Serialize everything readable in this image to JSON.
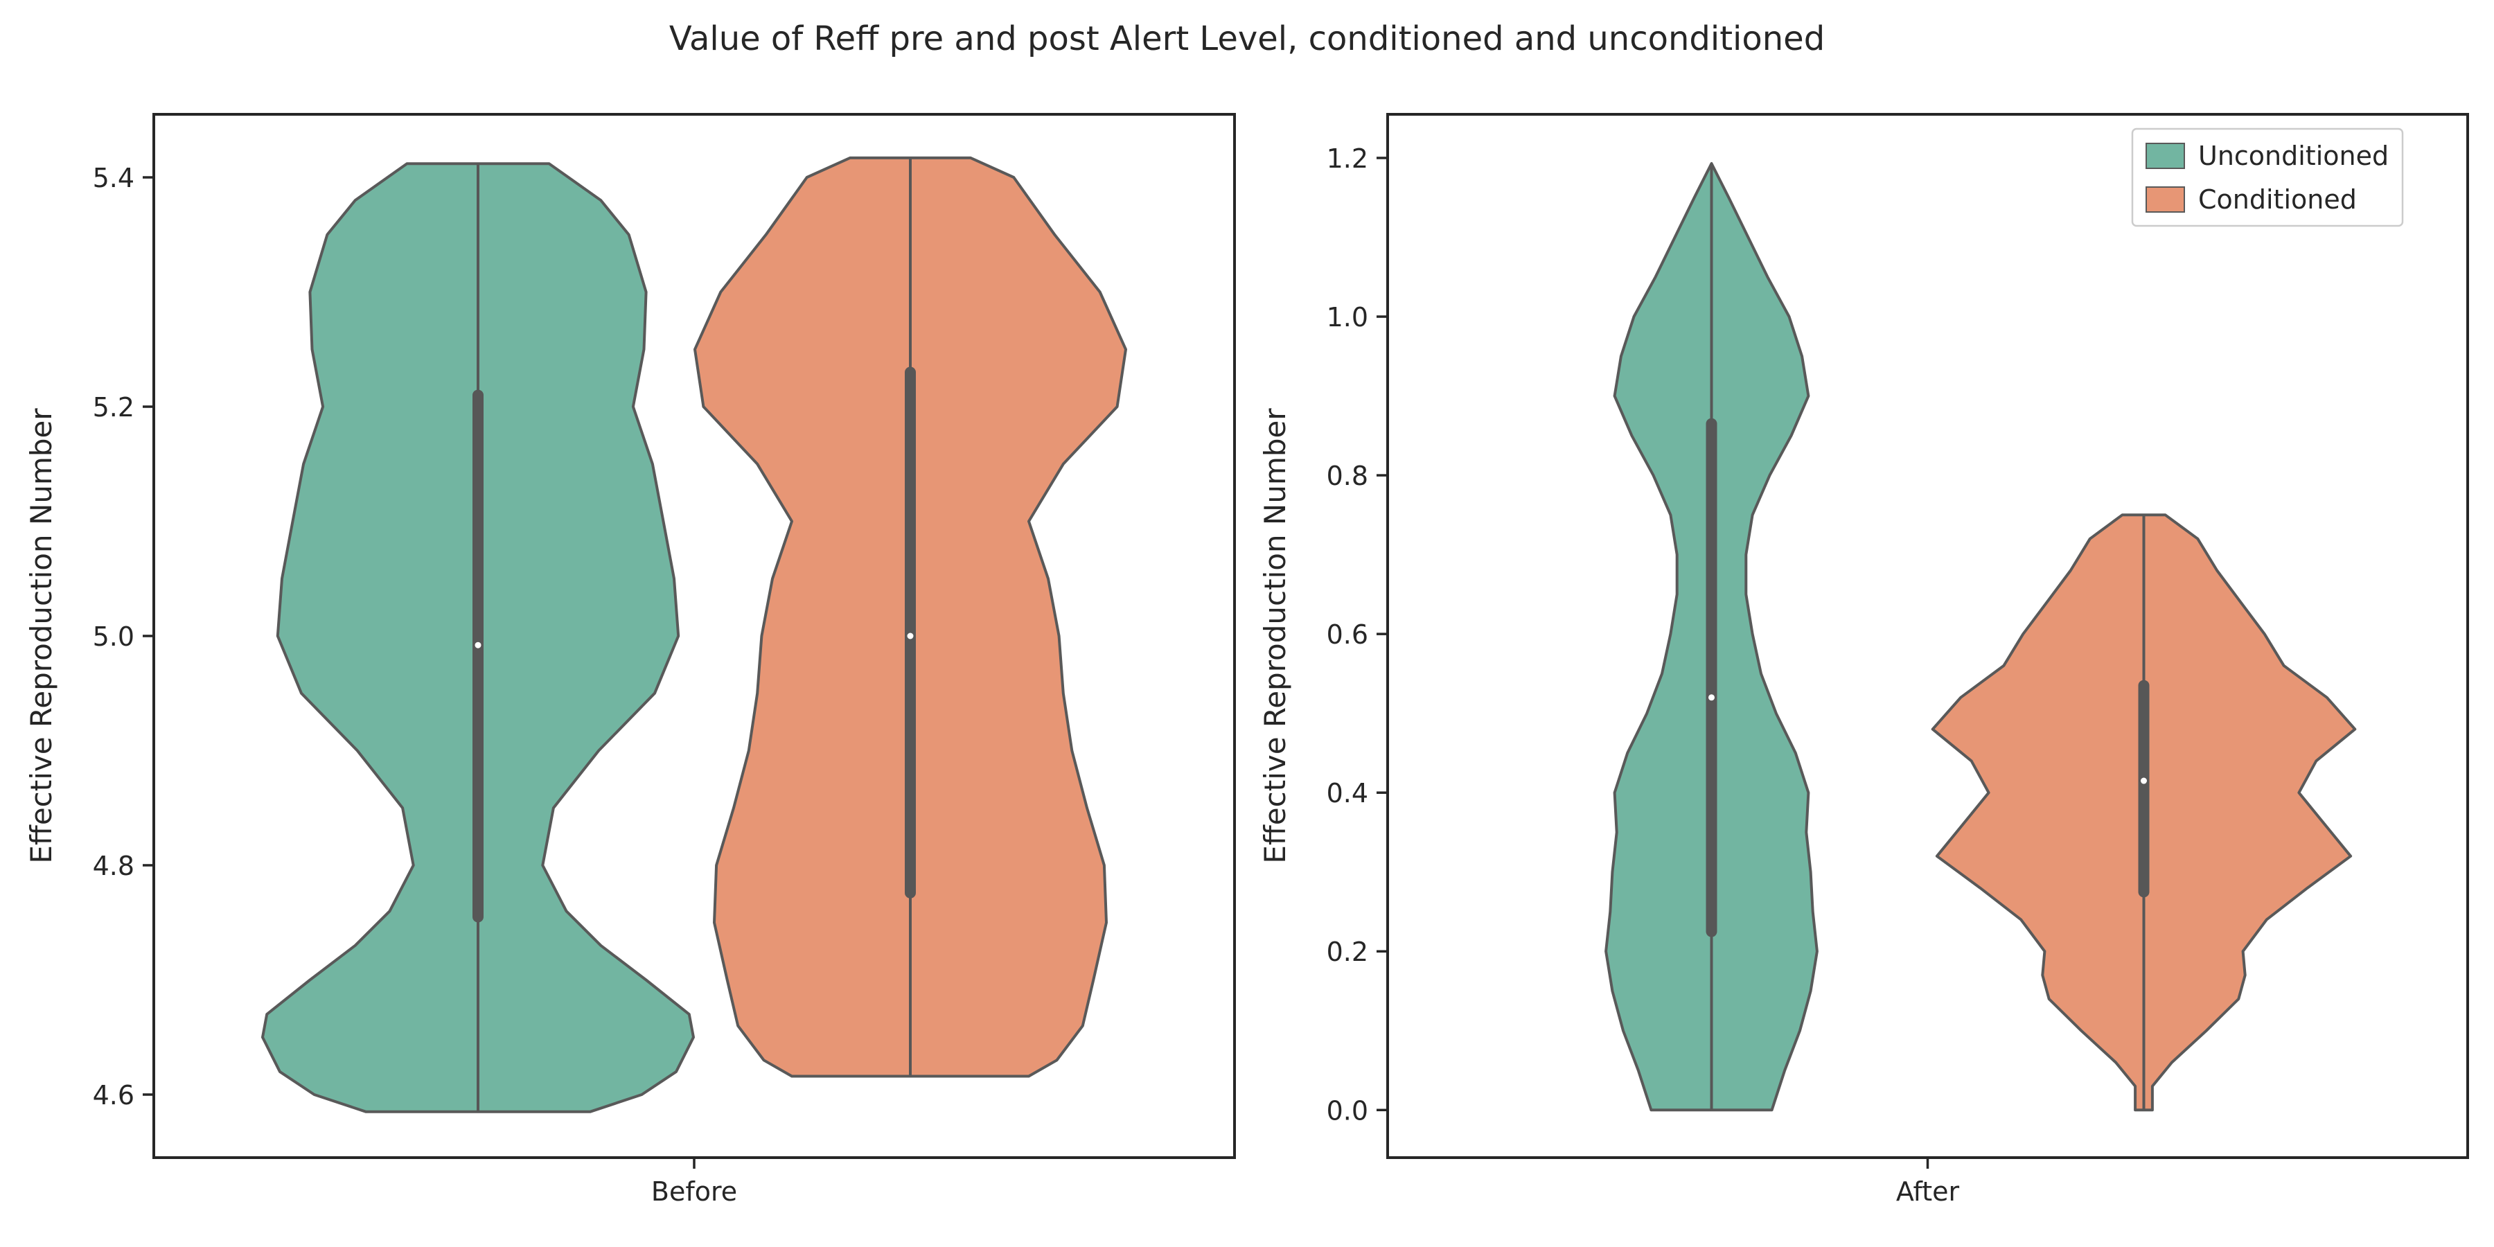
{
  "figure": {
    "title": "Value of Reff pre and post Alert Level, conditioned and unconditioned"
  },
  "colors": {
    "unconditioned": "#72b5a1",
    "conditioned": "#e79675",
    "violin_edge": "#595959",
    "box": "#575757",
    "median": "#ffffff",
    "axes": "#262626"
  },
  "chart_data": [
    {
      "type": "violin",
      "xlabel": "",
      "ylabel": "Effective Reproduction Number",
      "categories": [
        "Before"
      ],
      "ylim": [
        4.545,
        5.455
      ],
      "yticks": [
        4.6,
        4.8,
        5.0,
        5.2,
        5.4
      ],
      "ytick_labels": [
        "4.6",
        "4.8",
        "5.0",
        "5.2",
        "5.4"
      ],
      "legend": null,
      "series": [
        {
          "name": "Unconditioned",
          "min": 4.585,
          "max": 5.412,
          "q1": 4.755,
          "median": 4.992,
          "q3": 5.21,
          "profile": [
            [
              4.585,
              0.52
            ],
            [
              4.6,
              0.76
            ],
            [
              4.62,
              0.92
            ],
            [
              4.65,
              1.0
            ],
            [
              4.67,
              0.98
            ],
            [
              4.7,
              0.78
            ],
            [
              4.73,
              0.57
            ],
            [
              4.76,
              0.41
            ],
            [
              4.8,
              0.3
            ],
            [
              4.85,
              0.35
            ],
            [
              4.9,
              0.56
            ],
            [
              4.95,
              0.82
            ],
            [
              5.0,
              0.93
            ],
            [
              5.05,
              0.91
            ],
            [
              5.1,
              0.86
            ],
            [
              5.15,
              0.81
            ],
            [
              5.2,
              0.72
            ],
            [
              5.25,
              0.77
            ],
            [
              5.3,
              0.78
            ],
            [
              5.35,
              0.7
            ],
            [
              5.38,
              0.57
            ],
            [
              5.412,
              0.33
            ]
          ]
        },
        {
          "name": "Conditioned",
          "min": 4.616,
          "max": 5.417,
          "q1": 4.776,
          "median": 5.0,
          "q3": 5.23,
          "profile": [
            [
              4.616,
              0.55
            ],
            [
              4.63,
              0.68
            ],
            [
              4.66,
              0.8
            ],
            [
              4.7,
              0.85
            ],
            [
              4.75,
              0.91
            ],
            [
              4.8,
              0.9
            ],
            [
              4.85,
              0.82
            ],
            [
              4.9,
              0.75
            ],
            [
              4.95,
              0.71
            ],
            [
              5.0,
              0.69
            ],
            [
              5.05,
              0.64
            ],
            [
              5.1,
              0.55
            ],
            [
              5.15,
              0.71
            ],
            [
              5.2,
              0.96
            ],
            [
              5.25,
              1.0
            ],
            [
              5.3,
              0.88
            ],
            [
              5.35,
              0.67
            ],
            [
              5.4,
              0.48
            ],
            [
              5.417,
              0.28
            ]
          ]
        }
      ]
    },
    {
      "type": "violin",
      "xlabel": "",
      "ylabel": "Effective Reproduction Number",
      "categories": [
        "After"
      ],
      "ylim": [
        -0.06,
        1.255
      ],
      "yticks": [
        0.0,
        0.2,
        0.4,
        0.6,
        0.8,
        1.0,
        1.2
      ],
      "ytick_labels": [
        "0.0",
        "0.2",
        "0.4",
        "0.6",
        "0.8",
        "1.0",
        "1.2"
      ],
      "legend": "top-right",
      "series": [
        {
          "name": "Unconditioned",
          "min": 0.0,
          "max": 1.193,
          "q1": 0.225,
          "median": 0.52,
          "q3": 0.865,
          "profile": [
            [
              0.0,
              0.28
            ],
            [
              0.05,
              0.34
            ],
            [
              0.1,
              0.41
            ],
            [
              0.15,
              0.46
            ],
            [
              0.2,
              0.49
            ],
            [
              0.25,
              0.47
            ],
            [
              0.3,
              0.46
            ],
            [
              0.35,
              0.44
            ],
            [
              0.4,
              0.45
            ],
            [
              0.45,
              0.39
            ],
            [
              0.5,
              0.3
            ],
            [
              0.55,
              0.23
            ],
            [
              0.6,
              0.19
            ],
            [
              0.65,
              0.16
            ],
            [
              0.7,
              0.16
            ],
            [
              0.75,
              0.19
            ],
            [
              0.8,
              0.27
            ],
            [
              0.85,
              0.37
            ],
            [
              0.9,
              0.45
            ],
            [
              0.95,
              0.42
            ],
            [
              1.0,
              0.36
            ],
            [
              1.05,
              0.26
            ],
            [
              1.1,
              0.17
            ],
            [
              1.15,
              0.08
            ],
            [
              1.193,
              0.0
            ]
          ]
        },
        {
          "name": "Conditioned",
          "min": 0.0,
          "max": 0.75,
          "q1": 0.275,
          "median": 0.415,
          "q3": 0.535,
          "profile": [
            [
              0.0,
              0.04
            ],
            [
              0.03,
              0.04
            ],
            [
              0.06,
              0.13
            ],
            [
              0.1,
              0.29
            ],
            [
              0.14,
              0.44
            ],
            [
              0.17,
              0.47
            ],
            [
              0.2,
              0.46
            ],
            [
              0.24,
              0.57
            ],
            [
              0.28,
              0.76
            ],
            [
              0.32,
              0.96
            ],
            [
              0.36,
              0.84
            ],
            [
              0.4,
              0.72
            ],
            [
              0.44,
              0.8
            ],
            [
              0.48,
              0.98
            ],
            [
              0.52,
              0.85
            ],
            [
              0.56,
              0.65
            ],
            [
              0.6,
              0.56
            ],
            [
              0.64,
              0.45
            ],
            [
              0.68,
              0.34
            ],
            [
              0.72,
              0.25
            ],
            [
              0.75,
              0.1
            ]
          ]
        }
      ]
    }
  ]
}
